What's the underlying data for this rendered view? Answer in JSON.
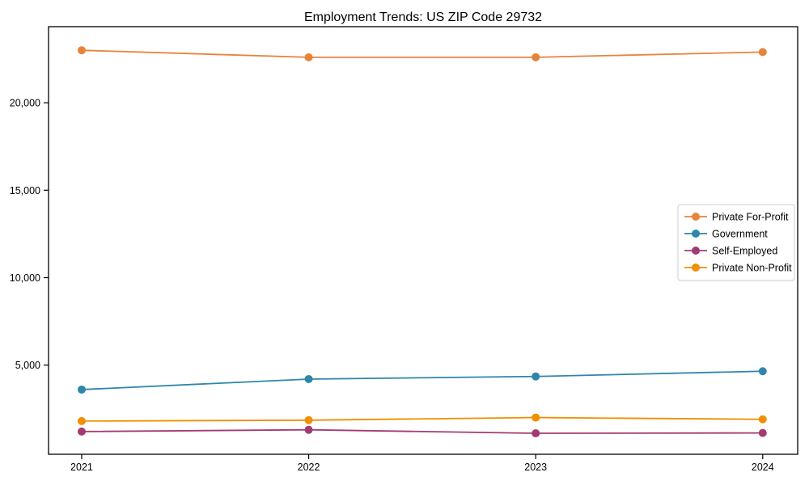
{
  "figure": {
    "background_color": "#ffffff",
    "spine_color": "#000000"
  },
  "chart_data": {
    "type": "line",
    "title": "Employment Trends: US ZIP Code 29732",
    "xlabel": "",
    "ylabel": "",
    "categories": [
      "2021",
      "2022",
      "2023",
      "2024"
    ],
    "series": [
      {
        "name": "Private For-Profit",
        "color": "#E8833A",
        "values": [
          23000,
          22600,
          22600,
          22900
        ]
      },
      {
        "name": "Government",
        "color": "#2E86AB",
        "values": [
          3600,
          4200,
          4350,
          4650
        ]
      },
      {
        "name": "Self-Employed",
        "color": "#A23B72",
        "values": [
          1200,
          1300,
          1100,
          1120
        ]
      },
      {
        "name": "Private Non-Profit",
        "color": "#F18F01",
        "values": [
          1800,
          1850,
          2000,
          1900
        ]
      }
    ],
    "y_ticks": [
      {
        "value": 5000,
        "label": "5,000"
      },
      {
        "value": 10000,
        "label": "10,000"
      },
      {
        "value": 15000,
        "label": "15,000"
      },
      {
        "value": 20000,
        "label": "20,000"
      }
    ],
    "ylim": [
      -100,
      24350
    ],
    "grid": false,
    "marker": "circle",
    "legend_position": "center right",
    "legend_frame_color": "#cccccc"
  }
}
